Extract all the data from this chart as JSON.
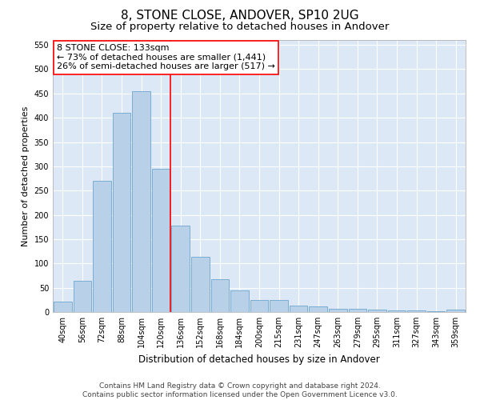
{
  "title": "8, STONE CLOSE, ANDOVER, SP10 2UG",
  "subtitle": "Size of property relative to detached houses in Andover",
  "xlabel": "Distribution of detached houses by size in Andover",
  "ylabel": "Number of detached properties",
  "categories": [
    "40sqm",
    "56sqm",
    "72sqm",
    "88sqm",
    "104sqm",
    "120sqm",
    "136sqm",
    "152sqm",
    "168sqm",
    "184sqm",
    "200sqm",
    "215sqm",
    "231sqm",
    "247sqm",
    "263sqm",
    "279sqm",
    "295sqm",
    "311sqm",
    "327sqm",
    "343sqm",
    "359sqm"
  ],
  "values": [
    22,
    65,
    270,
    410,
    455,
    295,
    178,
    113,
    68,
    44,
    25,
    25,
    14,
    12,
    7,
    6,
    5,
    4,
    3,
    2,
    5
  ],
  "bar_color": "#b8d0e8",
  "bar_edge_color": "#7aadd4",
  "vline_x": 5.5,
  "vline_color": "red",
  "annotation_text": "8 STONE CLOSE: 133sqm\n← 73% of detached houses are smaller (1,441)\n26% of semi-detached houses are larger (517) →",
  "annotation_box_color": "white",
  "annotation_box_edge_color": "red",
  "ylim": [
    0,
    560
  ],
  "yticks": [
    0,
    50,
    100,
    150,
    200,
    250,
    300,
    350,
    400,
    450,
    500,
    550
  ],
  "footer": "Contains HM Land Registry data © Crown copyright and database right 2024.\nContains public sector information licensed under the Open Government Licence v3.0.",
  "background_color": "#dce8f5",
  "grid_color": "white",
  "title_fontsize": 11,
  "subtitle_fontsize": 9.5,
  "annotation_fontsize": 8,
  "tick_fontsize": 7,
  "ylabel_fontsize": 8,
  "xlabel_fontsize": 8.5,
  "footer_fontsize": 6.5
}
